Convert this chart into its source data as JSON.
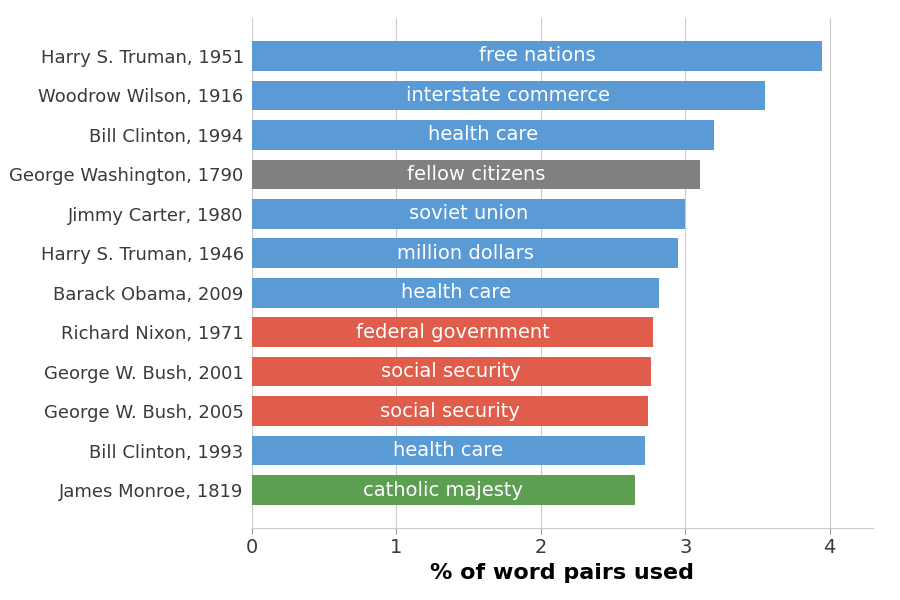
{
  "labels": [
    "Harry S. Truman, 1951",
    "Woodrow Wilson, 1916",
    "Bill Clinton, 1994",
    "George Washington, 1790",
    "Jimmy Carter, 1980",
    "Harry S. Truman, 1946",
    "Barack Obama, 2009",
    "Richard Nixon, 1971",
    "George W. Bush, 2001",
    "George W. Bush, 2005",
    "Bill Clinton, 1993",
    "James Monroe, 1819"
  ],
  "bar_labels": [
    "free nations",
    "interstate commerce",
    "health care",
    "fellow citizens",
    "soviet union",
    "million dollars",
    "health care",
    "federal government",
    "social security",
    "social security",
    "health care",
    "catholic majesty"
  ],
  "values": [
    3.95,
    3.55,
    3.2,
    3.1,
    3.0,
    2.95,
    2.82,
    2.78,
    2.76,
    2.74,
    2.72,
    2.65
  ],
  "colors": [
    "#5b9bd5",
    "#5b9bd5",
    "#5b9bd5",
    "#808080",
    "#5b9bd5",
    "#5b9bd5",
    "#5b9bd5",
    "#e05c4b",
    "#e05c4b",
    "#e05c4b",
    "#5b9bd5",
    "#5d9e52"
  ],
  "xlabel": "% of word pairs used",
  "xlim": [
    0,
    4.3
  ],
  "xticks": [
    0,
    1,
    2,
    3,
    4
  ],
  "bar_label_fontsize": 14,
  "tick_label_fontsize": 14,
  "xlabel_fontsize": 16,
  "label_fontsize": 13,
  "background_color": "#ffffff",
  "text_color": "#3a3a3a"
}
